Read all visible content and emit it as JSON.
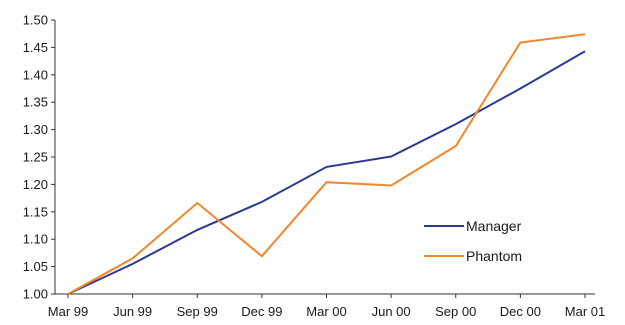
{
  "chart_data": {
    "type": "line",
    "title": "",
    "xlabel": "",
    "ylabel": "",
    "categories": [
      "Mar 99",
      "Jun 99",
      "Sep 99",
      "Dec 99",
      "Mar 00",
      "Jun 00",
      "Sep 00",
      "Dec 00",
      "Mar 01"
    ],
    "yticks": [
      "1.00",
      "1.05",
      "1.10",
      "1.15",
      "1.20",
      "1.25",
      "1.30",
      "1.35",
      "1.40",
      "1.45",
      "1.50"
    ],
    "ylim": [
      1.0,
      1.5
    ],
    "grid": false,
    "legend_position": "right",
    "series": [
      {
        "name": "Manager",
        "color": "#2b3990",
        "values": [
          1.0,
          1.055,
          1.117,
          1.168,
          1.232,
          1.251,
          1.31,
          1.375,
          1.443
        ]
      },
      {
        "name": "Phantom",
        "color": "#f0872a",
        "values": [
          1.0,
          1.065,
          1.166,
          1.069,
          1.204,
          1.198,
          1.27,
          1.459,
          1.474
        ]
      }
    ]
  }
}
